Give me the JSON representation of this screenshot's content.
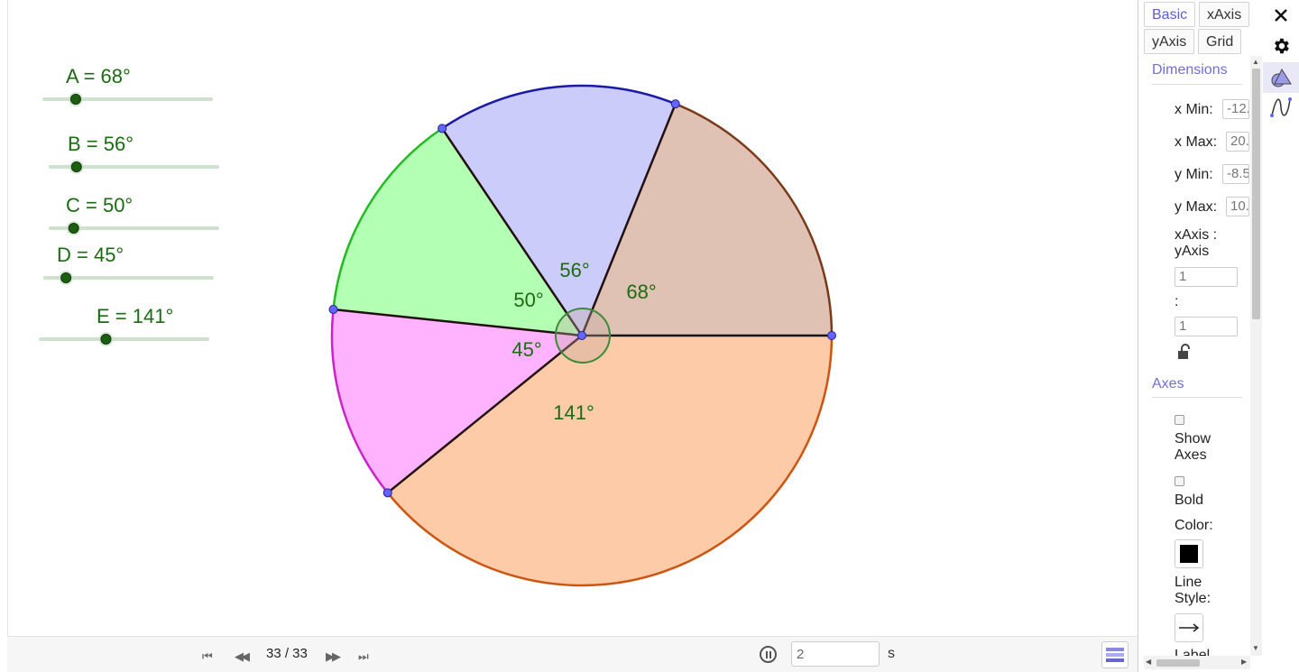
{
  "sliders": [
    {
      "label": "A = 68°",
      "value": 68
    },
    {
      "label": "B = 56°",
      "value": 56
    },
    {
      "label": "C = 50°",
      "value": 50
    },
    {
      "label": "D = 45°",
      "value": 45
    },
    {
      "label": "E = 141°",
      "value": 141
    }
  ],
  "sectors": [
    {
      "label": "68°",
      "angle": 68,
      "fill": "#e0c2b4",
      "arc": "#7a3a1a"
    },
    {
      "label": "56°",
      "angle": 56,
      "fill": "#ccccfa",
      "arc": "#1a1aaa"
    },
    {
      "label": "50°",
      "angle": 50,
      "fill": "#b3ffb3",
      "arc": "#22bb22"
    },
    {
      "label": "45°",
      "angle": 45,
      "fill": "#ffb3ff",
      "arc": "#cc22cc"
    },
    {
      "label": "141°",
      "angle": 141,
      "fill": "#fecba8",
      "arc": "#cc5511"
    }
  ],
  "playback": {
    "counter": "33 / 33",
    "speed_value": "2",
    "speed_unit": "s"
  },
  "panel": {
    "tabs": [
      "Basic",
      "xAxis",
      "yAxis",
      "Grid"
    ],
    "dimensions_title": "Dimensions",
    "xmin_label": "x Min:",
    "xmin_value": "-12.",
    "xmax_label": "x Max:",
    "xmax_value": "20.",
    "ymin_label": "y Min:",
    "ymin_value": "-8.5",
    "ymax_label": "y Max:",
    "ymax_value": "10.",
    "ratio_label": "xAxis : yAxis",
    "ratio_x": "1",
    "ratio_sep": ":",
    "ratio_y": "1",
    "axes_title": "Axes",
    "show_axes_label": "Show Axes",
    "bold_label": "Bold",
    "color_label": "Color:",
    "line_style_label": "Line Style:",
    "cut_label": "Label",
    "axis_color": "#000000"
  },
  "colors": {
    "label_green": "#1a6b12",
    "accent": "#5d5bd4",
    "point": "#6464ff"
  },
  "icons": [
    "close-icon",
    "gear-icon",
    "graphics-style-icon",
    "algebra-curve-icon"
  ]
}
